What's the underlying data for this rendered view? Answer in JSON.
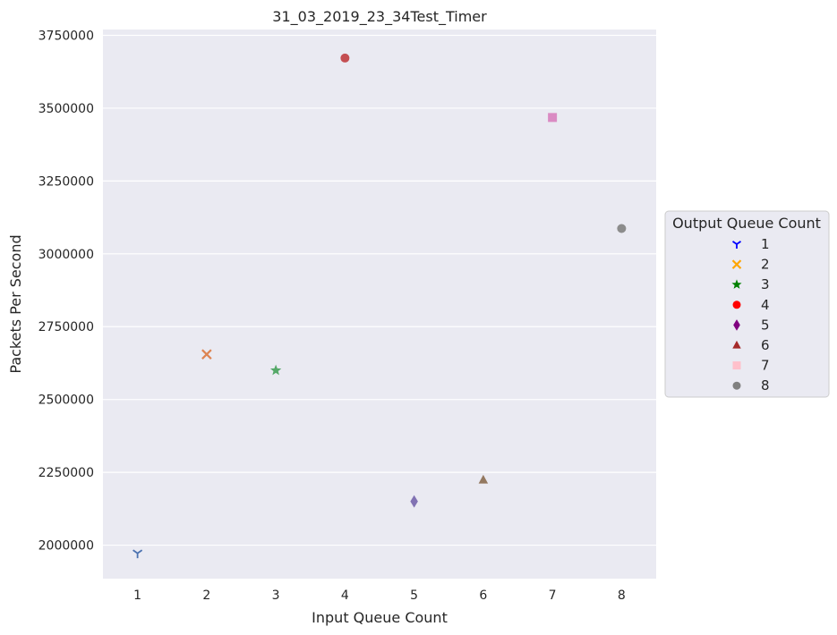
{
  "chart_data": {
    "type": "scatter",
    "title": "31_03_2019_23_34Test_Timer",
    "xlabel": "Input Queue Count",
    "ylabel": "Packets Per Second",
    "x_ticks": [
      1,
      2,
      3,
      4,
      5,
      6,
      7,
      8
    ],
    "y_ticks": [
      2000000,
      2250000,
      2500000,
      2750000,
      3000000,
      3250000,
      3500000,
      3750000
    ],
    "ylim": [
      1885000,
      3770000
    ],
    "xlim": [
      0.5,
      8.5
    ],
    "grid": true,
    "legend_title": "Output Queue Count",
    "legend_position": "center-right-outside",
    "points": [
      {
        "x": 1,
        "y": 1972000,
        "color": "#4c72b0",
        "marker": "tri-down"
      },
      {
        "x": 2,
        "y": 2655000,
        "color": "#dd8452",
        "marker": "x"
      },
      {
        "x": 3,
        "y": 2600000,
        "color": "#55a868",
        "marker": "star"
      },
      {
        "x": 4,
        "y": 3672000,
        "color": "#c44e52",
        "marker": "circle"
      },
      {
        "x": 5,
        "y": 2150000,
        "color": "#8172b3",
        "marker": "diamond"
      },
      {
        "x": 6,
        "y": 2224000,
        "color": "#937860",
        "marker": "triangle"
      },
      {
        "x": 7,
        "y": 3468000,
        "color": "#da8bc3",
        "marker": "square"
      },
      {
        "x": 8,
        "y": 3087000,
        "color": "#8c8c8c",
        "marker": "circle"
      }
    ],
    "legend": [
      {
        "label": "1",
        "color": "#0000ff",
        "marker": "tri-down"
      },
      {
        "label": "2",
        "color": "#ffa500",
        "marker": "x"
      },
      {
        "label": "3",
        "color": "#008000",
        "marker": "star"
      },
      {
        "label": "4",
        "color": "#ff0000",
        "marker": "circle"
      },
      {
        "label": "5",
        "color": "#800080",
        "marker": "diamond"
      },
      {
        "label": "6",
        "color": "#a52a2a",
        "marker": "triangle"
      },
      {
        "label": "7",
        "color": "#ffc0cb",
        "marker": "square"
      },
      {
        "label": "8",
        "color": "#808080",
        "marker": "circle"
      }
    ]
  }
}
